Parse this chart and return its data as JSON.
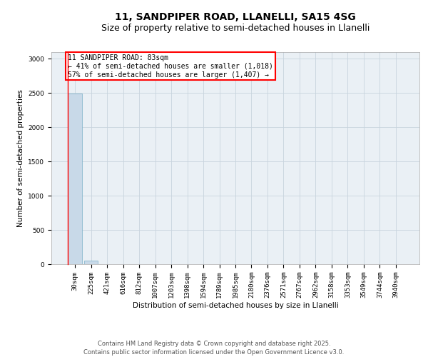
{
  "title_line1": "11, SANDPIPER ROAD, LLANELLI, SA15 4SG",
  "title_line2": "Size of property relative to semi-detached houses in Llanelli",
  "xlabel": "Distribution of semi-detached houses by size in Llanelli",
  "ylabel": "Number of semi-detached properties",
  "categories": [
    "30sqm",
    "225sqm",
    "421sqm",
    "616sqm",
    "812sqm",
    "1007sqm",
    "1203sqm",
    "1398sqm",
    "1594sqm",
    "1789sqm",
    "1985sqm",
    "2180sqm",
    "2376sqm",
    "2571sqm",
    "2767sqm",
    "2962sqm",
    "3158sqm",
    "3353sqm",
    "3549sqm",
    "3744sqm",
    "3940sqm"
  ],
  "bar_heights": [
    2490,
    50,
    2,
    1,
    0,
    0,
    0,
    0,
    0,
    0,
    0,
    0,
    0,
    0,
    0,
    0,
    0,
    0,
    0,
    0,
    0
  ],
  "bar_color": "#c8d9e8",
  "bar_edge_color": "#7aafc8",
  "annotation_line1": "11 SANDPIPER ROAD: 83sqm",
  "annotation_line2": "← 41% of semi-detached houses are smaller (1,018)",
  "annotation_line3": "57% of semi-detached houses are larger (1,407) →",
  "ylim": [
    0,
    3100
  ],
  "yticks": [
    0,
    500,
    1000,
    1500,
    2000,
    2500,
    3000
  ],
  "grid_color": "#c8d4de",
  "background_color": "#eaf0f5",
  "footer_line1": "Contains HM Land Registry data © Crown copyright and database right 2025.",
  "footer_line2": "Contains public sector information licensed under the Open Government Licence v3.0.",
  "title_fontsize": 10,
  "subtitle_fontsize": 9,
  "axis_label_fontsize": 7.5,
  "tick_fontsize": 6.5,
  "annotation_fontsize": 7,
  "footer_fontsize": 6
}
